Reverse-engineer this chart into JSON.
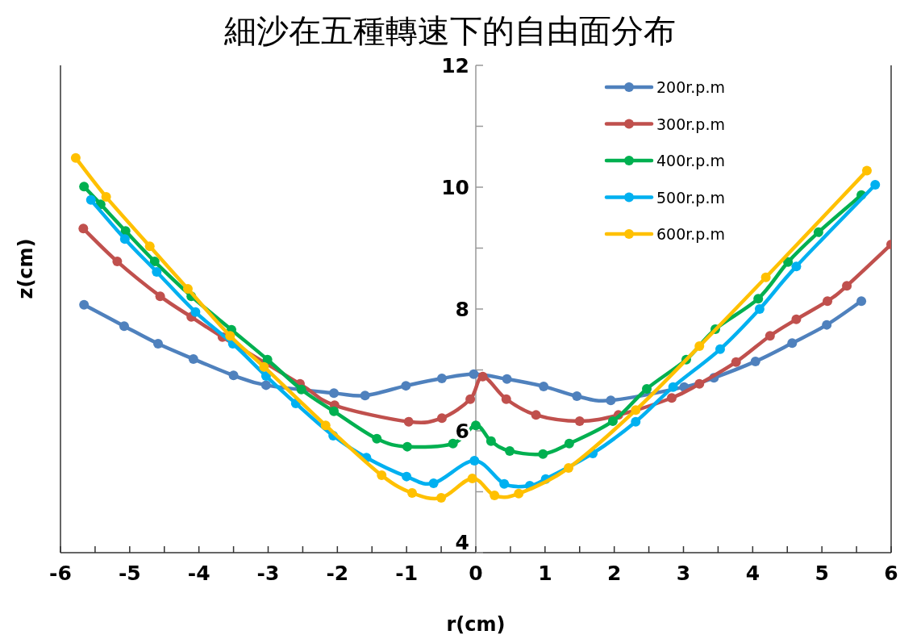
{
  "chart_data": {
    "type": "line",
    "title": "細沙在五種轉速下的自由面分布",
    "xlabel": "r(cm)",
    "ylabel": "z(cm)",
    "xlim": [
      -6,
      6
    ],
    "ylim": [
      4,
      12
    ],
    "xticks": [
      -6,
      {
        "value": -5.5,
        "label": null
      },
      -5,
      {
        "value": -4.5,
        "label": null
      },
      -4,
      {
        "value": -3.5,
        "label": null
      },
      -3,
      {
        "value": -2.5,
        "label": null
      },
      -2,
      {
        "value": -1.5,
        "label": null
      },
      -1,
      {
        "value": -0.5,
        "label": null
      },
      0,
      {
        "value": 0.5,
        "label": null
      },
      1,
      {
        "value": 1.5,
        "label": null
      },
      2,
      {
        "value": 2.5,
        "label": null
      },
      3,
      {
        "value": 3.5,
        "label": null
      },
      4,
      {
        "value": 4.5,
        "label": null
      },
      5,
      {
        "value": 5.5,
        "label": null
      },
      6
    ],
    "yticks": [
      4,
      {
        "value": 5,
        "label": null
      },
      6,
      {
        "value": 7,
        "label": null
      },
      8,
      {
        "value": 9,
        "label": null
      },
      10,
      {
        "value": 11,
        "label": null
      },
      12
    ],
    "grid": false,
    "legend": "top right",
    "marker": "circle",
    "line_style": "solid",
    "series": [
      {
        "name": "200r.p.m",
        "color": "#4f81bd",
        "x": [
          -5.66,
          -5.08,
          -4.59,
          -4.08,
          -3.5,
          -3.03,
          -2.05,
          -1.6,
          -1.01,
          -0.49,
          -0.03,
          0.45,
          0.98,
          1.46,
          1.95,
          3.01,
          3.44,
          4.04,
          4.57,
          5.07,
          5.57
        ],
        "values": [
          8.07,
          7.72,
          7.43,
          7.18,
          6.91,
          6.75,
          6.62,
          6.58,
          6.74,
          6.86,
          6.93,
          6.85,
          6.73,
          6.57,
          6.5,
          6.72,
          6.87,
          7.14,
          7.44,
          7.74,
          8.13
        ]
      },
      {
        "name": "300r.p.m",
        "color": "#c0504d",
        "x": [
          -5.67,
          -5.18,
          -4.56,
          -4.11,
          -3.66,
          -2.54,
          -2.04,
          -0.97,
          -0.49,
          -0.08,
          0.1,
          0.44,
          0.87,
          1.5,
          2.06,
          2.83,
          3.23,
          3.76,
          4.25,
          4.63,
          5.08,
          5.36,
          6.0
        ],
        "values": [
          9.32,
          8.78,
          8.21,
          7.87,
          7.54,
          6.77,
          6.42,
          6.15,
          6.21,
          6.52,
          6.89,
          6.52,
          6.26,
          6.16,
          6.26,
          6.54,
          6.77,
          7.13,
          7.56,
          7.83,
          8.13,
          8.38,
          9.06
        ]
      },
      {
        "name": "400r.p.m",
        "color": "#00b050",
        "x": [
          -5.66,
          -5.42,
          -5.06,
          -4.64,
          -4.11,
          -3.53,
          -3.01,
          -2.52,
          -2.05,
          -1.43,
          -0.99,
          -0.33,
          0.0,
          0.22,
          0.49,
          0.97,
          1.35,
          1.98,
          2.47,
          3.04,
          3.46,
          4.08,
          4.51,
          4.95,
          5.57
        ],
        "values": [
          10.01,
          9.72,
          9.28,
          8.78,
          8.21,
          7.66,
          7.17,
          6.68,
          6.32,
          5.87,
          5.74,
          5.79,
          6.09,
          5.83,
          5.67,
          5.62,
          5.79,
          6.16,
          6.69,
          7.17,
          7.67,
          8.17,
          8.77,
          9.26,
          9.87
        ]
      },
      {
        "name": "500r.p.m",
        "color": "#00b0f0",
        "x": [
          -5.56,
          -5.07,
          -4.61,
          -4.05,
          -3.51,
          -3.03,
          -2.6,
          -2.06,
          -1.58,
          -1.0,
          -0.61,
          -0.02,
          0.41,
          0.78,
          1.01,
          1.69,
          2.31,
          2.85,
          3.53,
          4.1,
          4.63,
          5.77
        ],
        "values": [
          9.79,
          9.15,
          8.61,
          7.95,
          7.43,
          6.9,
          6.45,
          5.92,
          5.56,
          5.25,
          5.14,
          5.51,
          5.13,
          5.1,
          5.21,
          5.63,
          6.15,
          6.72,
          7.34,
          8.0,
          8.7,
          10.04
        ]
      },
      {
        "name": "600r.p.m",
        "color": "#ffc000",
        "x": [
          -5.78,
          -5.34,
          -4.71,
          -4.16,
          -3.55,
          -3.06,
          -2.17,
          -1.36,
          -0.92,
          -0.5,
          -0.05,
          0.27,
          0.62,
          1.34,
          2.31,
          3.23,
          4.19,
          5.65
        ],
        "values": [
          10.48,
          9.84,
          9.03,
          8.33,
          7.56,
          7.05,
          6.09,
          5.27,
          4.98,
          4.9,
          5.22,
          4.94,
          4.97,
          5.39,
          6.34,
          7.39,
          8.52,
          10.27
        ]
      }
    ]
  }
}
